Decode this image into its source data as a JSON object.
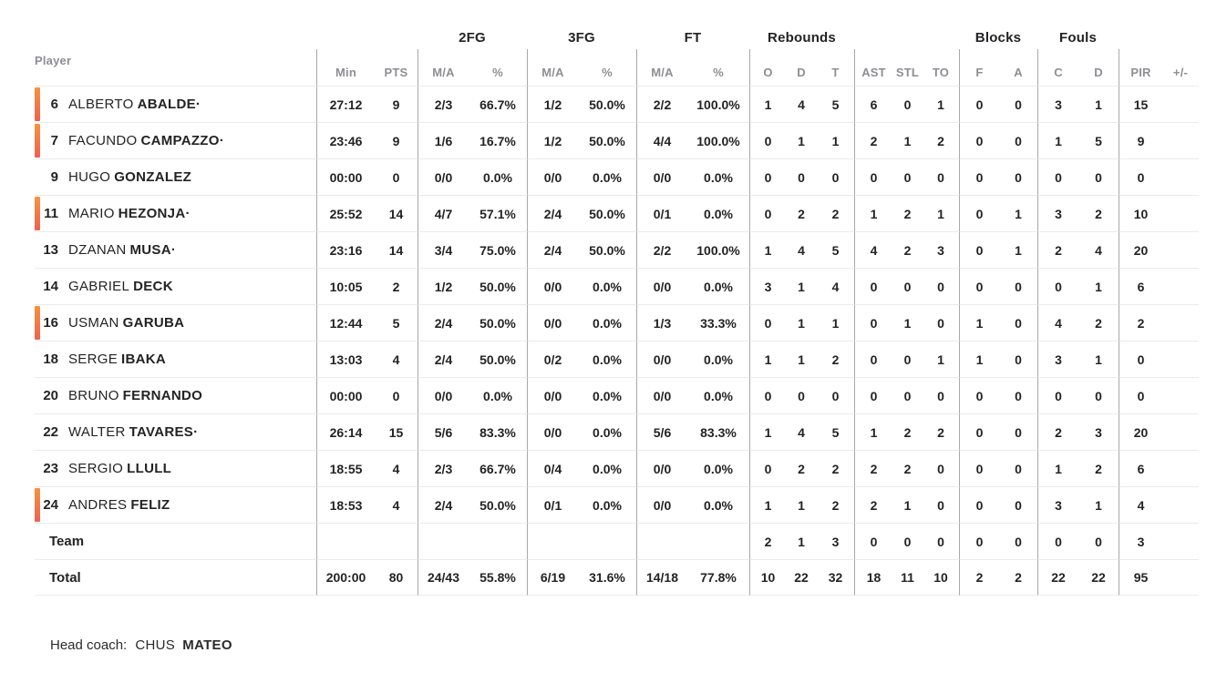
{
  "accent": {
    "bar_top": "#f6933f",
    "bar_bottom": "#ed6150"
  },
  "header": {
    "player": "Player",
    "groups": {
      "fg2": "2FG",
      "fg3": "3FG",
      "ft": "FT",
      "rebounds": "Rebounds",
      "blocks": "Blocks",
      "fouls": "Fouls"
    },
    "sub": {
      "min": "Min",
      "pts": "PTS",
      "fg2_ma": "M/A",
      "fg2_pct": "%",
      "fg3_ma": "M/A",
      "fg3_pct": "%",
      "ft_ma": "M/A",
      "ft_pct": "%",
      "reb_o": "O",
      "reb_d": "D",
      "reb_t": "T",
      "ast": "AST",
      "stl": "STL",
      "to": "TO",
      "blk_f": "F",
      "blk_a": "A",
      "foul_c": "C",
      "foul_d": "D",
      "pir": "PIR",
      "pm": "+/-"
    }
  },
  "rows": [
    {
      "type": "player",
      "number": "6",
      "first": "ALBERTO",
      "last": "ABALDE",
      "mark": "·",
      "on_court": true,
      "min": "27:12",
      "pts": "9",
      "fg2_ma": "2/3",
      "fg2_pct": "66.7%",
      "fg3_ma": "1/2",
      "fg3_pct": "50.0%",
      "ft_ma": "2/2",
      "ft_pct": "100.0%",
      "reb_o": "1",
      "reb_d": "4",
      "reb_t": "5",
      "ast": "6",
      "stl": "0",
      "to": "1",
      "blk_f": "0",
      "blk_a": "0",
      "foul_c": "3",
      "foul_d": "1",
      "pir": "15",
      "pm": ""
    },
    {
      "type": "player",
      "number": "7",
      "first": "FACUNDO",
      "last": "CAMPAZZO",
      "mark": "·",
      "on_court": true,
      "min": "23:46",
      "pts": "9",
      "fg2_ma": "1/6",
      "fg2_pct": "16.7%",
      "fg3_ma": "1/2",
      "fg3_pct": "50.0%",
      "ft_ma": "4/4",
      "ft_pct": "100.0%",
      "reb_o": "0",
      "reb_d": "1",
      "reb_t": "1",
      "ast": "2",
      "stl": "1",
      "to": "2",
      "blk_f": "0",
      "blk_a": "0",
      "foul_c": "1",
      "foul_d": "5",
      "pir": "9",
      "pm": ""
    },
    {
      "type": "player",
      "number": "9",
      "first": "HUGO",
      "last": "GONZALEZ",
      "mark": "",
      "on_court": false,
      "min": "00:00",
      "pts": "0",
      "fg2_ma": "0/0",
      "fg2_pct": "0.0%",
      "fg3_ma": "0/0",
      "fg3_pct": "0.0%",
      "ft_ma": "0/0",
      "ft_pct": "0.0%",
      "reb_o": "0",
      "reb_d": "0",
      "reb_t": "0",
      "ast": "0",
      "stl": "0",
      "to": "0",
      "blk_f": "0",
      "blk_a": "0",
      "foul_c": "0",
      "foul_d": "0",
      "pir": "0",
      "pm": ""
    },
    {
      "type": "player",
      "number": "11",
      "first": "MARIO",
      "last": "HEZONJA",
      "mark": "·",
      "on_court": true,
      "min": "25:52",
      "pts": "14",
      "fg2_ma": "4/7",
      "fg2_pct": "57.1%",
      "fg3_ma": "2/4",
      "fg3_pct": "50.0%",
      "ft_ma": "0/1",
      "ft_pct": "0.0%",
      "reb_o": "0",
      "reb_d": "2",
      "reb_t": "2",
      "ast": "1",
      "stl": "2",
      "to": "1",
      "blk_f": "0",
      "blk_a": "1",
      "foul_c": "3",
      "foul_d": "2",
      "pir": "10",
      "pm": ""
    },
    {
      "type": "player",
      "number": "13",
      "first": "DZANAN",
      "last": "MUSA",
      "mark": "·",
      "on_court": false,
      "min": "23:16",
      "pts": "14",
      "fg2_ma": "3/4",
      "fg2_pct": "75.0%",
      "fg3_ma": "2/4",
      "fg3_pct": "50.0%",
      "ft_ma": "2/2",
      "ft_pct": "100.0%",
      "reb_o": "1",
      "reb_d": "4",
      "reb_t": "5",
      "ast": "4",
      "stl": "2",
      "to": "3",
      "blk_f": "0",
      "blk_a": "1",
      "foul_c": "2",
      "foul_d": "4",
      "pir": "20",
      "pm": ""
    },
    {
      "type": "player",
      "number": "14",
      "first": "GABRIEL",
      "last": "DECK",
      "mark": "",
      "on_court": false,
      "min": "10:05",
      "pts": "2",
      "fg2_ma": "1/2",
      "fg2_pct": "50.0%",
      "fg3_ma": "0/0",
      "fg3_pct": "0.0%",
      "ft_ma": "0/0",
      "ft_pct": "0.0%",
      "reb_o": "3",
      "reb_d": "1",
      "reb_t": "4",
      "ast": "0",
      "stl": "0",
      "to": "0",
      "blk_f": "0",
      "blk_a": "0",
      "foul_c": "0",
      "foul_d": "1",
      "pir": "6",
      "pm": ""
    },
    {
      "type": "player",
      "number": "16",
      "first": "USMAN",
      "last": "GARUBA",
      "mark": "",
      "on_court": true,
      "min": "12:44",
      "pts": "5",
      "fg2_ma": "2/4",
      "fg2_pct": "50.0%",
      "fg3_ma": "0/0",
      "fg3_pct": "0.0%",
      "ft_ma": "1/3",
      "ft_pct": "33.3%",
      "reb_o": "0",
      "reb_d": "1",
      "reb_t": "1",
      "ast": "0",
      "stl": "1",
      "to": "0",
      "blk_f": "1",
      "blk_a": "0",
      "foul_c": "4",
      "foul_d": "2",
      "pir": "2",
      "pm": ""
    },
    {
      "type": "player",
      "number": "18",
      "first": "SERGE",
      "last": "IBAKA",
      "mark": "",
      "on_court": false,
      "min": "13:03",
      "pts": "4",
      "fg2_ma": "2/4",
      "fg2_pct": "50.0%",
      "fg3_ma": "0/2",
      "fg3_pct": "0.0%",
      "ft_ma": "0/0",
      "ft_pct": "0.0%",
      "reb_o": "1",
      "reb_d": "1",
      "reb_t": "2",
      "ast": "0",
      "stl": "0",
      "to": "1",
      "blk_f": "1",
      "blk_a": "0",
      "foul_c": "3",
      "foul_d": "1",
      "pir": "0",
      "pm": ""
    },
    {
      "type": "player",
      "number": "20",
      "first": "BRUNO",
      "last": "FERNANDO",
      "mark": "",
      "on_court": false,
      "min": "00:00",
      "pts": "0",
      "fg2_ma": "0/0",
      "fg2_pct": "0.0%",
      "fg3_ma": "0/0",
      "fg3_pct": "0.0%",
      "ft_ma": "0/0",
      "ft_pct": "0.0%",
      "reb_o": "0",
      "reb_d": "0",
      "reb_t": "0",
      "ast": "0",
      "stl": "0",
      "to": "0",
      "blk_f": "0",
      "blk_a": "0",
      "foul_c": "0",
      "foul_d": "0",
      "pir": "0",
      "pm": ""
    },
    {
      "type": "player",
      "number": "22",
      "first": "WALTER",
      "last": "TAVARES",
      "mark": "·",
      "on_court": false,
      "min": "26:14",
      "pts": "15",
      "fg2_ma": "5/6",
      "fg2_pct": "83.3%",
      "fg3_ma": "0/0",
      "fg3_pct": "0.0%",
      "ft_ma": "5/6",
      "ft_pct": "83.3%",
      "reb_o": "1",
      "reb_d": "4",
      "reb_t": "5",
      "ast": "1",
      "stl": "2",
      "to": "2",
      "blk_f": "0",
      "blk_a": "0",
      "foul_c": "2",
      "foul_d": "3",
      "pir": "20",
      "pm": ""
    },
    {
      "type": "player",
      "number": "23",
      "first": "SERGIO",
      "last": "LLULL",
      "mark": "",
      "on_court": false,
      "min": "18:55",
      "pts": "4",
      "fg2_ma": "2/3",
      "fg2_pct": "66.7%",
      "fg3_ma": "0/4",
      "fg3_pct": "0.0%",
      "ft_ma": "0/0",
      "ft_pct": "0.0%",
      "reb_o": "0",
      "reb_d": "2",
      "reb_t": "2",
      "ast": "2",
      "stl": "2",
      "to": "0",
      "blk_f": "0",
      "blk_a": "0",
      "foul_c": "1",
      "foul_d": "2",
      "pir": "6",
      "pm": ""
    },
    {
      "type": "player",
      "number": "24",
      "first": "ANDRES",
      "last": "FELIZ",
      "mark": "",
      "on_court": true,
      "min": "18:53",
      "pts": "4",
      "fg2_ma": "2/4",
      "fg2_pct": "50.0%",
      "fg3_ma": "0/1",
      "fg3_pct": "0.0%",
      "ft_ma": "0/0",
      "ft_pct": "0.0%",
      "reb_o": "1",
      "reb_d": "1",
      "reb_t": "2",
      "ast": "2",
      "stl": "1",
      "to": "0",
      "blk_f": "0",
      "blk_a": "0",
      "foul_c": "3",
      "foul_d": "1",
      "pir": "4",
      "pm": ""
    },
    {
      "type": "team",
      "label": "Team",
      "min": "",
      "pts": "",
      "fg2_ma": "",
      "fg2_pct": "",
      "fg3_ma": "",
      "fg3_pct": "",
      "ft_ma": "",
      "ft_pct": "",
      "reb_o": "2",
      "reb_d": "1",
      "reb_t": "3",
      "ast": "0",
      "stl": "0",
      "to": "0",
      "blk_f": "0",
      "blk_a": "0",
      "foul_c": "0",
      "foul_d": "0",
      "pir": "3",
      "pm": ""
    },
    {
      "type": "total",
      "label": "Total",
      "min": "200:00",
      "pts": "80",
      "fg2_ma": "24/43",
      "fg2_pct": "55.8%",
      "fg3_ma": "6/19",
      "fg3_pct": "31.6%",
      "ft_ma": "14/18",
      "ft_pct": "77.8%",
      "reb_o": "10",
      "reb_d": "22",
      "reb_t": "32",
      "ast": "18",
      "stl": "11",
      "to": "10",
      "blk_f": "2",
      "blk_a": "2",
      "foul_c": "22",
      "foul_d": "22",
      "pir": "95",
      "pm": ""
    }
  ],
  "footer": {
    "label": "Head coach:",
    "coach_first": "CHUS",
    "coach_last": "MATEO"
  }
}
